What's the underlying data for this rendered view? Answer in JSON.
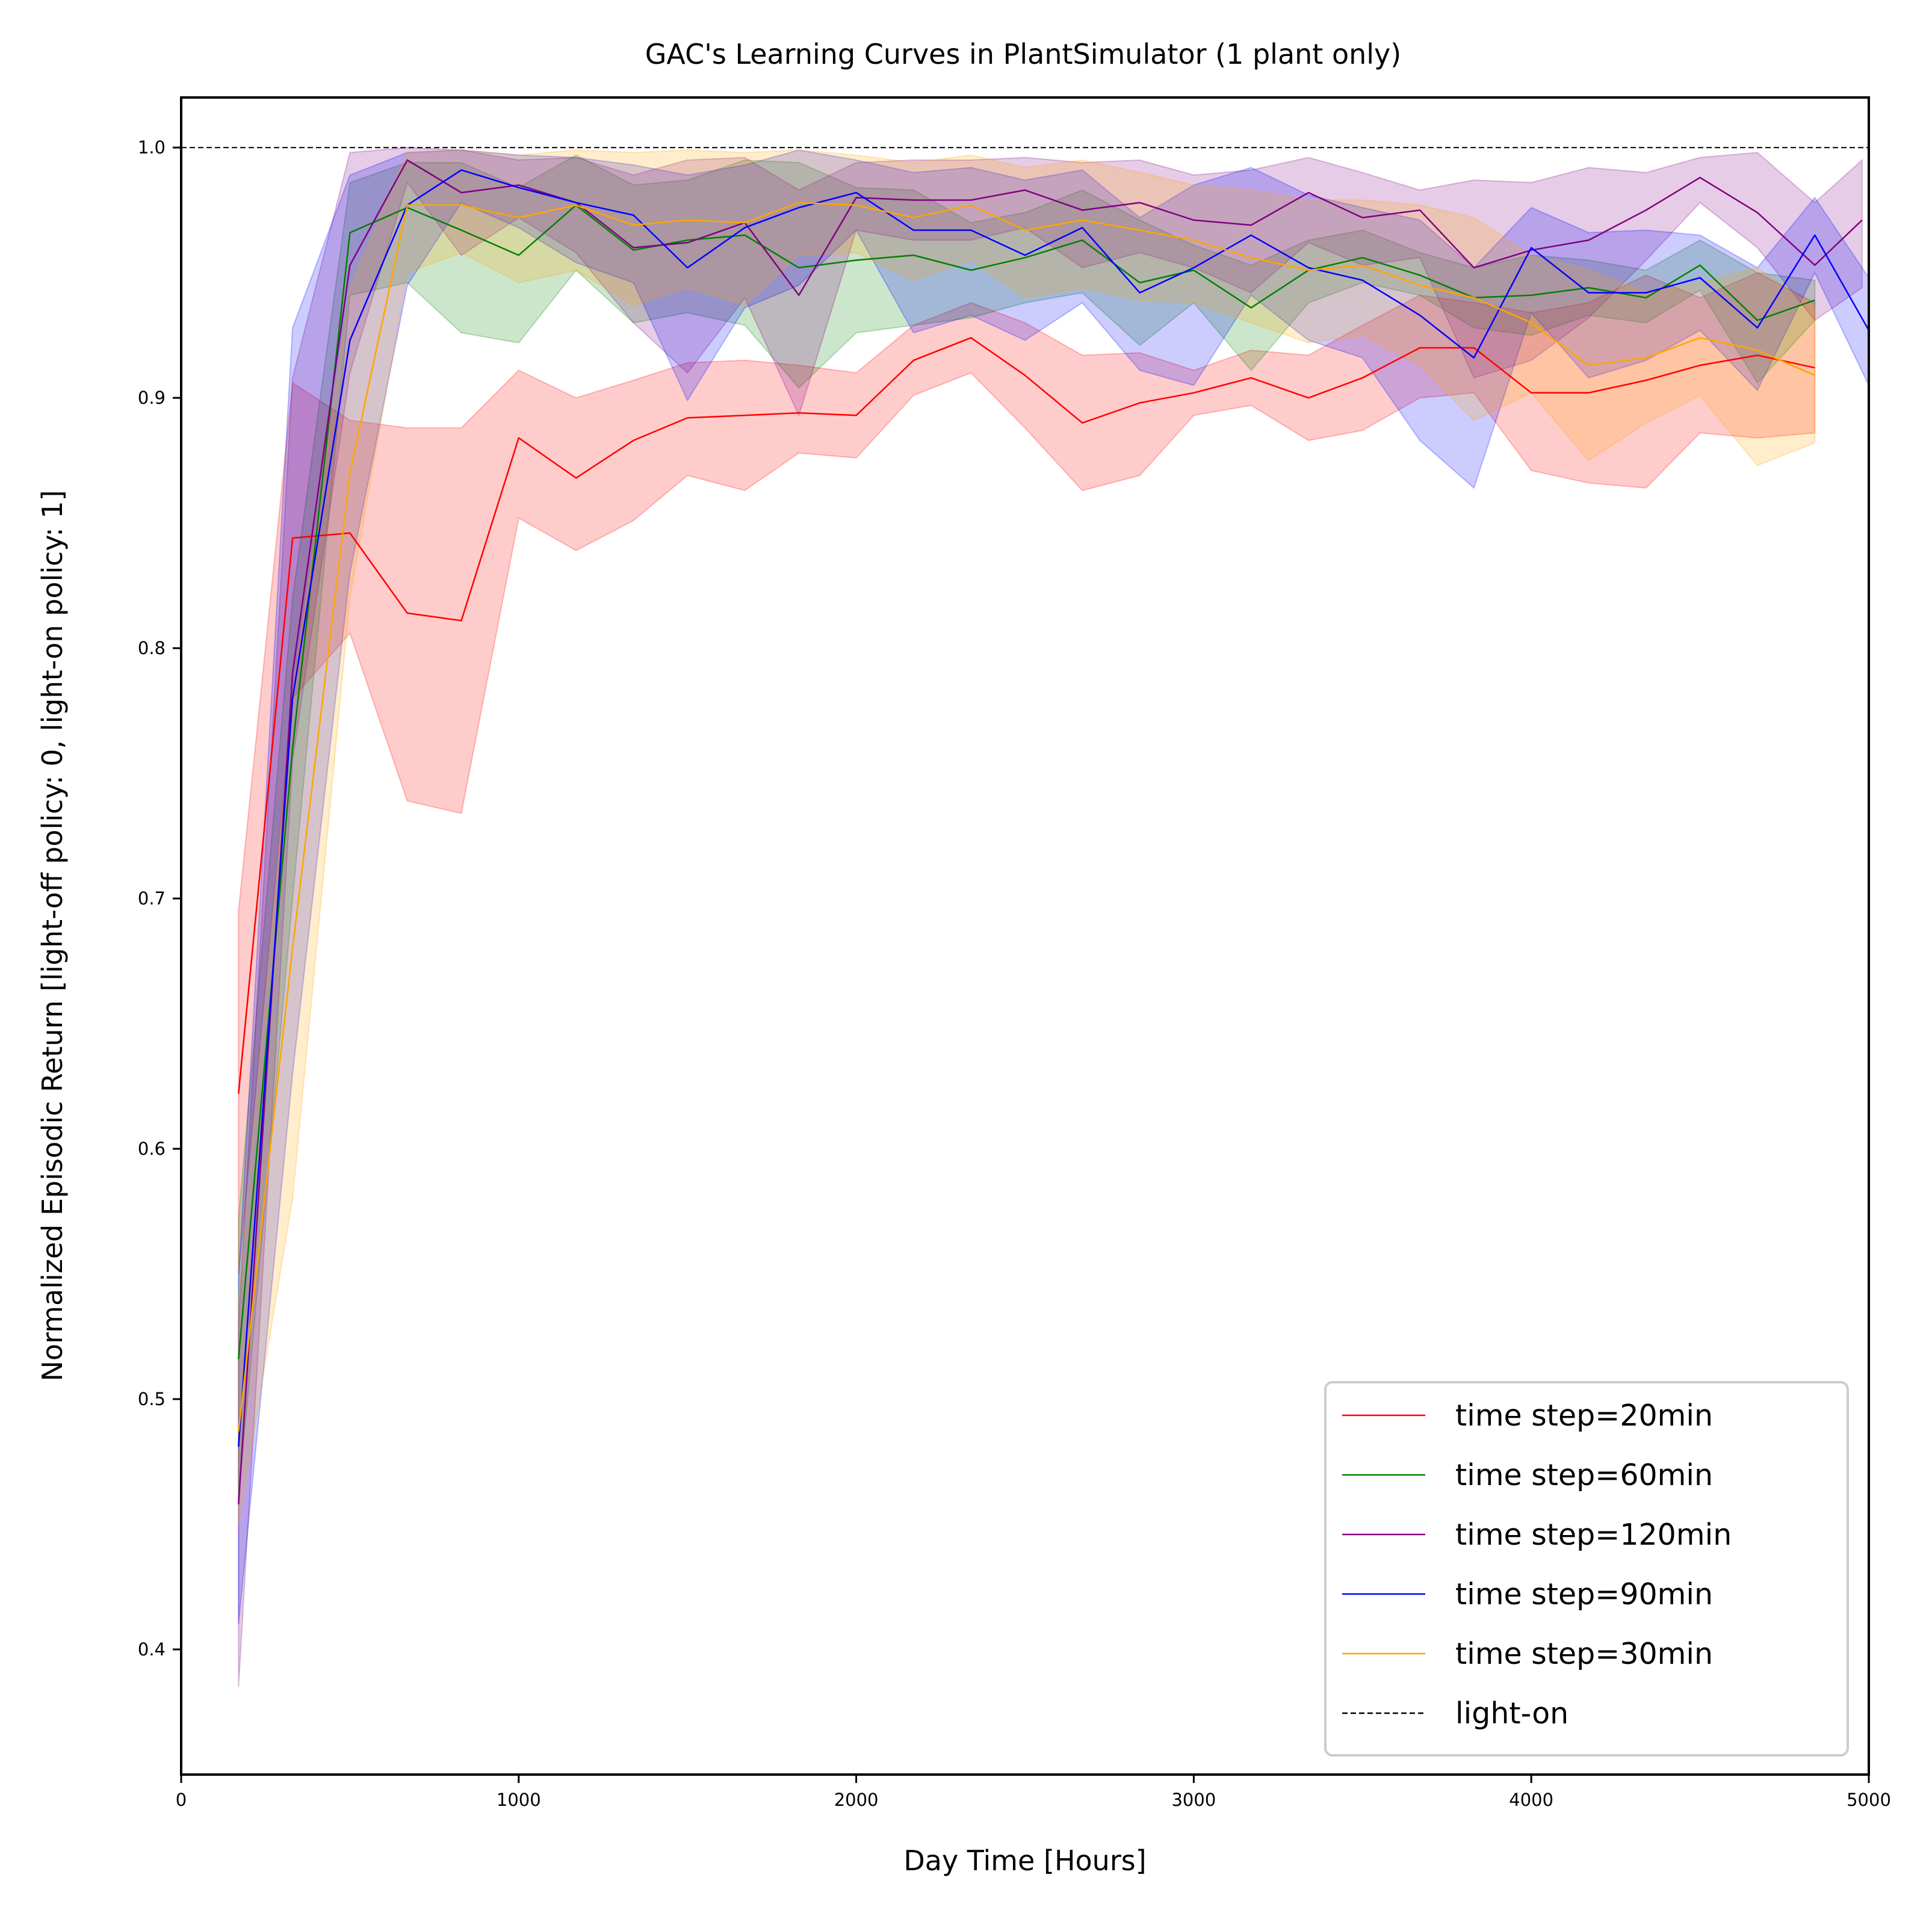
{
  "chart_data": {
    "type": "line",
    "title": "GAC's Learning Curves in PlantSimulator (1 plant only)",
    "xlabel": "Day Time [Hours]",
    "ylabel": "Normalized Episodic Return [light-off policy: 0, light-on policy: 1]",
    "xlim": [
      0,
      5000
    ],
    "ylim": [
      0.35,
      1.02
    ],
    "xticks": [
      0,
      1000,
      2000,
      3000,
      4000,
      5000
    ],
    "yticks": [
      0.4,
      0.5,
      0.6,
      0.7,
      0.8,
      0.9,
      1.0
    ],
    "xtick_labels": [
      "0",
      "1000",
      "2000",
      "3000",
      "4000",
      "5000"
    ],
    "ytick_labels": [
      "0.4",
      "0.5",
      "0.6",
      "0.7",
      "0.8",
      "0.9",
      "1.0"
    ],
    "grid": false,
    "legend_position": "lower right",
    "reference_line": {
      "name": "light-on",
      "y": 1.0,
      "color": "#000000",
      "style": "dashed"
    },
    "series": [
      {
        "name": "time step=20min",
        "color": "#ff0000",
        "x": [
          170,
          330,
          500,
          670,
          830,
          1000,
          1170,
          1340,
          1500,
          1670,
          1830,
          2000,
          2170,
          2340,
          2500,
          2670,
          2840,
          3000,
          3170,
          3340,
          3500,
          3670,
          3830,
          4000,
          4170,
          4340,
          4500,
          4670,
          4840
        ],
        "y": [
          0.622,
          0.844,
          0.846,
          0.814,
          0.811,
          0.884,
          0.868,
          0.883,
          0.892,
          0.893,
          0.894,
          0.893,
          0.915,
          0.924,
          0.909,
          0.89,
          0.898,
          0.902,
          0.908,
          0.9,
          0.908,
          0.92,
          0.92,
          0.902,
          0.902,
          0.907,
          0.913,
          0.917,
          0.912
        ],
        "lower": [
          0.55,
          0.78,
          0.806,
          0.739,
          0.734,
          0.852,
          0.839,
          0.851,
          0.869,
          0.863,
          0.878,
          0.876,
          0.901,
          0.91,
          0.888,
          0.863,
          0.869,
          0.893,
          0.897,
          0.883,
          0.887,
          0.9,
          0.902,
          0.871,
          0.866,
          0.864,
          0.886,
          0.884,
          0.886
        ],
        "upper": [
          0.695,
          0.906,
          0.891,
          0.888,
          0.888,
          0.911,
          0.9,
          0.907,
          0.914,
          0.915,
          0.913,
          0.91,
          0.929,
          0.938,
          0.93,
          0.917,
          0.918,
          0.911,
          0.919,
          0.917,
          0.929,
          0.941,
          0.938,
          0.934,
          0.938,
          0.949,
          0.94,
          0.95,
          0.938
        ]
      },
      {
        "name": "time step=60min",
        "color": "#008000",
        "x": [
          170,
          330,
          500,
          670,
          830,
          1000,
          1170,
          1340,
          1500,
          1670,
          1830,
          2000,
          2170,
          2340,
          2500,
          2670,
          2840,
          3000,
          3170,
          3340,
          3500,
          3670,
          3830,
          4000,
          4170,
          4340,
          4500,
          4670,
          4840
        ],
        "y": [
          0.516,
          0.76,
          0.966,
          0.976,
          0.967,
          0.957,
          0.977,
          0.959,
          0.963,
          0.965,
          0.952,
          0.955,
          0.957,
          0.951,
          0.956,
          0.963,
          0.946,
          0.951,
          0.936,
          0.951,
          0.956,
          0.949,
          0.94,
          0.941,
          0.944,
          0.94,
          0.953,
          0.931,
          0.939
        ],
        "lower": [
          0.46,
          0.7,
          0.941,
          0.946,
          0.926,
          0.922,
          0.951,
          0.93,
          0.934,
          0.929,
          0.904,
          0.926,
          0.929,
          0.932,
          0.938,
          0.942,
          0.921,
          0.938,
          0.911,
          0.938,
          0.946,
          0.941,
          0.928,
          0.925,
          0.933,
          0.93,
          0.943,
          0.906,
          0.931
        ],
        "upper": [
          0.572,
          0.82,
          0.986,
          0.994,
          0.994,
          0.984,
          0.997,
          0.985,
          0.987,
          0.995,
          0.994,
          0.984,
          0.983,
          0.97,
          0.974,
          0.983,
          0.971,
          0.961,
          0.953,
          0.963,
          0.967,
          0.958,
          0.952,
          0.957,
          0.955,
          0.951,
          0.963,
          0.95,
          0.947
        ]
      },
      {
        "name": "time step=120min",
        "color": "#800080",
        "x": [
          170,
          330,
          500,
          670,
          830,
          1000,
          1170,
          1340,
          1500,
          1670,
          1830,
          2000,
          2170,
          2340,
          2500,
          2670,
          2840,
          3000,
          3170,
          3340,
          3500,
          3670,
          3830,
          4000,
          4170,
          4340,
          4500,
          4670,
          4840,
          4980
        ],
        "y": [
          0.458,
          0.79,
          0.953,
          0.995,
          0.982,
          0.985,
          0.978,
          0.96,
          0.962,
          0.97,
          0.941,
          0.98,
          0.979,
          0.979,
          0.983,
          0.975,
          0.978,
          0.971,
          0.969,
          0.982,
          0.972,
          0.975,
          0.952,
          0.959,
          0.963,
          0.975,
          0.988,
          0.974,
          0.953,
          0.971
        ],
        "lower": [
          0.385,
          0.755,
          0.91,
          0.986,
          0.957,
          0.972,
          0.958,
          0.93,
          0.91,
          0.94,
          0.893,
          0.967,
          0.963,
          0.963,
          0.968,
          0.952,
          0.958,
          0.952,
          0.942,
          0.962,
          0.953,
          0.956,
          0.908,
          0.915,
          0.932,
          0.955,
          0.978,
          0.96,
          0.931,
          0.944
        ],
        "upper": [
          0.53,
          0.908,
          0.998,
          1.0,
          0.999,
          0.995,
          0.996,
          0.989,
          0.995,
          0.996,
          0.983,
          0.994,
          0.995,
          0.995,
          0.996,
          0.994,
          0.995,
          0.989,
          0.991,
          0.996,
          0.99,
          0.983,
          0.987,
          0.986,
          0.992,
          0.99,
          0.996,
          0.998,
          0.978,
          0.995
        ]
      },
      {
        "name": "time step=90min",
        "color": "#0000ff",
        "x": [
          170,
          330,
          500,
          670,
          830,
          1000,
          1170,
          1340,
          1500,
          1670,
          1830,
          2000,
          2170,
          2340,
          2500,
          2670,
          2840,
          3000,
          3170,
          3340,
          3500,
          3670,
          3830,
          4000,
          4170,
          4340,
          4500,
          4670,
          4840,
          5000
        ],
        "y": [
          0.481,
          0.78,
          0.923,
          0.977,
          0.991,
          0.984,
          0.978,
          0.973,
          0.952,
          0.968,
          0.976,
          0.982,
          0.967,
          0.967,
          0.957,
          0.968,
          0.942,
          0.952,
          0.965,
          0.952,
          0.947,
          0.933,
          0.916,
          0.96,
          0.942,
          0.942,
          0.948,
          0.928,
          0.965,
          0.927
        ],
        "lower": [
          0.41,
          0.63,
          0.83,
          0.945,
          0.978,
          0.968,
          0.954,
          0.946,
          0.899,
          0.936,
          0.945,
          0.967,
          0.926,
          0.933,
          0.923,
          0.938,
          0.911,
          0.905,
          0.941,
          0.923,
          0.916,
          0.883,
          0.864,
          0.934,
          0.908,
          0.915,
          0.927,
          0.903,
          0.95,
          0.905
        ],
        "upper": [
          0.548,
          0.928,
          0.989,
          0.998,
          0.999,
          0.997,
          0.996,
          0.993,
          0.989,
          0.993,
          0.999,
          0.995,
          0.99,
          0.992,
          0.987,
          0.991,
          0.972,
          0.985,
          0.992,
          0.981,
          0.976,
          0.971,
          0.952,
          0.976,
          0.966,
          0.967,
          0.965,
          0.952,
          0.98,
          0.948
        ]
      },
      {
        "name": "time step=30min",
        "color": "#ffa500",
        "x": [
          170,
          330,
          500,
          670,
          830,
          1000,
          1170,
          1340,
          1500,
          1670,
          1830,
          2000,
          2170,
          2340,
          2500,
          2670,
          2840,
          3000,
          3170,
          3340,
          3500,
          3670,
          3830,
          4000,
          4170,
          4340,
          4500,
          4670,
          4840
        ],
        "y": [
          0.487,
          0.68,
          0.87,
          0.977,
          0.977,
          0.972,
          0.977,
          0.969,
          0.971,
          0.97,
          0.978,
          0.977,
          0.972,
          0.977,
          0.967,
          0.971,
          0.967,
          0.963,
          0.956,
          0.951,
          0.953,
          0.945,
          0.94,
          0.93,
          0.913,
          0.916,
          0.924,
          0.919,
          0.909
        ],
        "lower": [
          0.45,
          0.58,
          0.82,
          0.95,
          0.958,
          0.946,
          0.951,
          0.937,
          0.944,
          0.937,
          0.957,
          0.958,
          0.947,
          0.955,
          0.94,
          0.944,
          0.939,
          0.938,
          0.93,
          0.922,
          0.925,
          0.913,
          0.891,
          0.902,
          0.875,
          0.89,
          0.901,
          0.873,
          0.882
        ],
        "upper": [
          0.54,
          0.781,
          0.944,
          0.998,
          0.999,
          0.997,
          0.999,
          0.998,
          0.999,
          0.998,
          0.999,
          0.997,
          0.994,
          0.997,
          0.992,
          0.995,
          0.99,
          0.985,
          0.983,
          0.979,
          0.979,
          0.977,
          0.972,
          0.957,
          0.951,
          0.942,
          0.946,
          0.952,
          0.936
        ]
      }
    ]
  }
}
